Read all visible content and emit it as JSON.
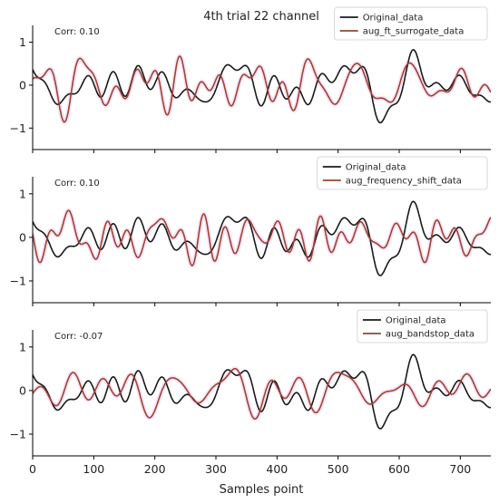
{
  "title": "4th trial 22 channel",
  "xlabel": "Samples point",
  "colors": {
    "original": "#1a1a1a",
    "augmented": "#8b4a32",
    "highlight": "#ffc8f0"
  },
  "chart_data": [
    {
      "type": "line",
      "correlation_label": "Corr: 0.10",
      "legend_position": "top-right",
      "xlim": [
        0,
        750
      ],
      "ylim": [
        -1.5,
        1.35
      ],
      "xticks": [
        0,
        100,
        200,
        300,
        400,
        500,
        600,
        700
      ],
      "yticks": [
        -1,
        0,
        1
      ],
      "grid": false,
      "series": [
        {
          "name": "Original_data",
          "color": "#1a1a1a",
          "seed": 11,
          "amplitude": 0.62
        },
        {
          "name": "aug_ft_surrogate_data",
          "color": "#8b4a32",
          "seed": 23,
          "amplitude": 0.55
        }
      ]
    },
    {
      "type": "line",
      "correlation_label": "Corr: 0.10",
      "legend_position": "top-right",
      "xlim": [
        0,
        750
      ],
      "ylim": [
        -1.5,
        1.35
      ],
      "xticks": [
        0,
        100,
        200,
        300,
        400,
        500,
        600,
        700
      ],
      "yticks": [
        -1,
        0,
        1
      ],
      "grid": false,
      "series": [
        {
          "name": "Original_data",
          "color": "#1a1a1a",
          "seed": 11,
          "amplitude": 0.62
        },
        {
          "name": "aug_frequency_shift_data",
          "color": "#8b4a32",
          "seed": 37,
          "amplitude": 0.52
        }
      ]
    },
    {
      "type": "line",
      "correlation_label": "Corr: -0.07",
      "legend_position": "top-right",
      "xlim": [
        0,
        750
      ],
      "ylim": [
        -1.5,
        1.35
      ],
      "xticks": [
        0,
        100,
        200,
        300,
        400,
        500,
        600,
        700
      ],
      "yticks": [
        -1,
        0,
        1
      ],
      "grid": false,
      "series": [
        {
          "name": "Original_data",
          "color": "#1a1a1a",
          "seed": 11,
          "amplitude": 0.62
        },
        {
          "name": "aug_bandstop_data",
          "color": "#8b4a32",
          "seed": 53,
          "amplitude": 0.48
        }
      ]
    }
  ]
}
